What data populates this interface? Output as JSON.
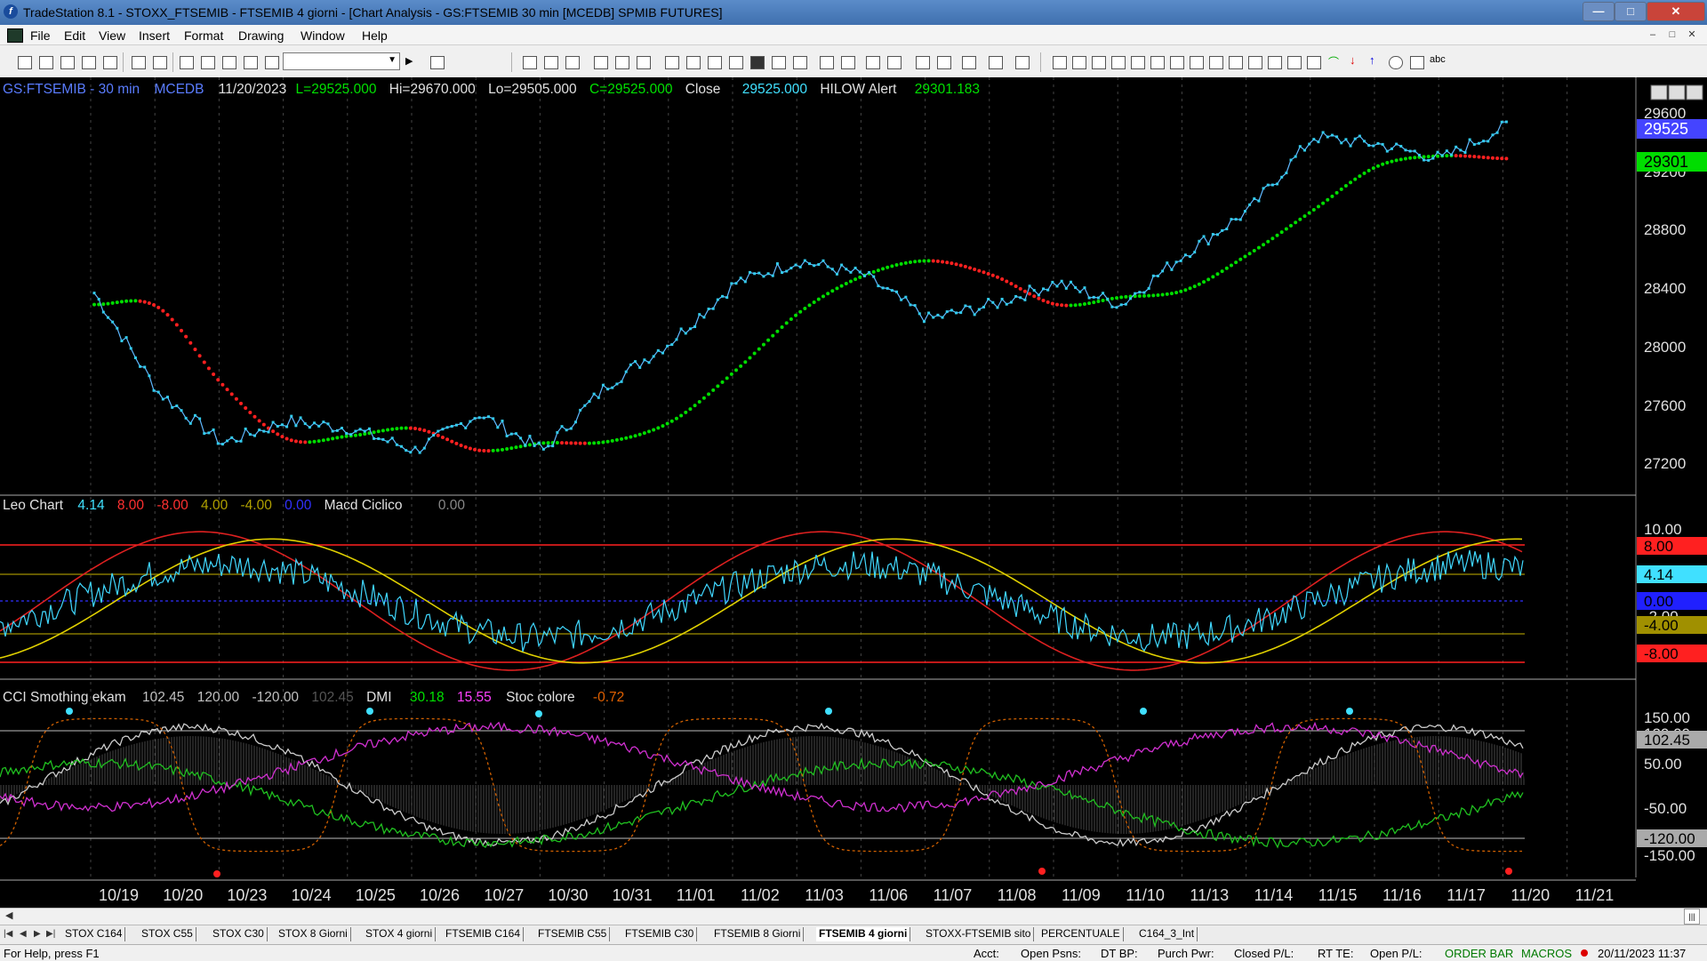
{
  "window": {
    "title": "TradeStation 8.1 - STOXX_FTSEMIB - FTSEMIB  4 giorni - [Chart Analysis - GS:FTSEMIB  30 min  [MCEDB] SPMIB FUTURES]",
    "min_label": "—",
    "max_label": "□",
    "close_label": "✕"
  },
  "menu": {
    "items": [
      "File",
      "Edit",
      "View",
      "Insert",
      "Format",
      "Drawing",
      "Window",
      "Help"
    ],
    "mdi_min": "–",
    "mdi_restore": "□",
    "mdi_close": "✕"
  },
  "toolbar": {
    "combo_value": "",
    "text_tool_label": "abc"
  },
  "chart": {
    "price_header": {
      "symbol": "GS:FTSEMIB - 30 min",
      "feed": "MCEDB",
      "date": "11/20/2023",
      "last": "L=29525.000",
      "high": "Hi=29670.000",
      "low": "Lo=29505.000",
      "close_c": "C=29525.000",
      "close_label": "Close",
      "close_value": "29525.000",
      "alert_label": "HILOW Alert",
      "alert_value": "29301.183"
    },
    "osc_header": {
      "name": "Leo Chart",
      "v1": "4.14",
      "v2": "8.00",
      "v3": "-8.00",
      "v4": "4.00",
      "v5": "-4.00",
      "v6": "0.00",
      "macd_label": "Macd Ciclico",
      "macd_value": "0.00"
    },
    "cci_header": {
      "name": "CCI Smothing ekam",
      "v1": "102.45",
      "v2": "120.00",
      "v3": "-120.00",
      "v4": "102.45",
      "dmi_label": "DMI",
      "dmi_plus": "30.18",
      "dmi_minus": "15.55",
      "stoc_label": "Stoc colore",
      "stoc_value": "-0.72"
    },
    "price_axis": {
      "ticks": [
        "29600",
        "29200",
        "28800",
        "28400",
        "28000",
        "27600",
        "27200"
      ],
      "label_close": "29525",
      "label_alert": "29301"
    },
    "osc_axis": {
      "ticks": [
        "10.00",
        "-2.00"
      ],
      "labels": [
        "8.00",
        "4.14",
        "0.00",
        "-4.00",
        "-8.00"
      ]
    },
    "cci_axis": {
      "ticks": [
        "150.00",
        "120.00",
        "50.00",
        "-50.00",
        "-150.00"
      ],
      "labels": [
        "102.45",
        "-120.00"
      ]
    },
    "dates": [
      "10/19",
      "10/20",
      "10/23",
      "10/24",
      "10/25",
      "10/26",
      "10/27",
      "10/30",
      "10/31",
      "11/01",
      "11/02",
      "11/03",
      "11/06",
      "11/07",
      "11/08",
      "11/09",
      "11/10",
      "11/13",
      "11/14",
      "11/15",
      "11/16",
      "11/17",
      "11/20",
      "11/21"
    ]
  },
  "chart_data": {
    "type": "line",
    "title": "GS:FTSEMIB - 30 min",
    "x": [
      "10/19",
      "10/20",
      "10/23",
      "10/24",
      "10/25",
      "10/26",
      "10/27",
      "10/30",
      "10/31",
      "11/01",
      "11/02",
      "11/03",
      "11/06",
      "11/07",
      "11/08",
      "11/09",
      "11/10",
      "11/13",
      "11/14",
      "11/15",
      "11/16",
      "11/17",
      "11/20",
      "11/21"
    ],
    "ylim": [
      27000,
      29700
    ],
    "series": [
      {
        "name": "Close",
        "values": [
          28380,
          27700,
          27350,
          27500,
          27450,
          27300,
          27550,
          27300,
          27750,
          28050,
          28450,
          28600,
          28500,
          28200,
          28300,
          28450,
          28300,
          28650,
          28950,
          29450,
          29400,
          29300,
          29525,
          null
        ]
      },
      {
        "name": "HILOW Alert",
        "values": [
          28300,
          28280,
          27750,
          27380,
          27400,
          27450,
          27300,
          27350,
          27360,
          27500,
          27850,
          28250,
          28500,
          28600,
          28500,
          28300,
          28350,
          28400,
          28650,
          28950,
          29250,
          29320,
          29301,
          null
        ]
      }
    ],
    "osc_lines": [
      8.0,
      4.0,
      0.0,
      -4.0,
      -8.0
    ],
    "cci_lines": [
      120.0,
      -120.0
    ],
    "colors": {
      "price": "#33ccee",
      "alert_up": "#00dd00",
      "alert_down": "#ff2020",
      "background": "#000000"
    }
  }
}
